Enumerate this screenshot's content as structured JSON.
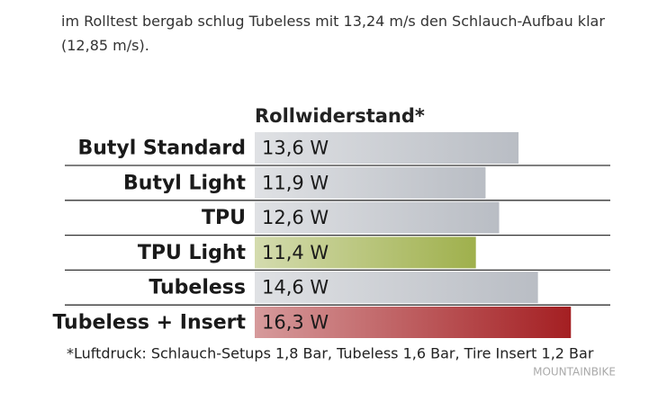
{
  "article": {
    "paragraph": "im Rolltest bergab schlug Tubeless mit 13,24 m/s den Schlauch-Aufbau klar (12,85 m/s)."
  },
  "chart_data": {
    "type": "bar",
    "orientation": "horizontal",
    "title": "Rollwiderstand*",
    "categories": [
      "Butyl Standard",
      "Butyl Light",
      "TPU",
      "TPU Light",
      "Tubeless",
      "Tubeless + Insert"
    ],
    "values": [
      13.6,
      11.9,
      12.6,
      11.4,
      14.6,
      16.3
    ],
    "value_labels": [
      "13,6 W",
      "11,9 W",
      "12,6 W",
      "11,4 W",
      "14,6 W",
      "16,3 W"
    ],
    "colors": [
      "#b9bdc4",
      "#b9bdc4",
      "#b9bdc4",
      "#9fb04c",
      "#b9bdc4",
      "#a41f22"
    ],
    "footnote": "*Luftdruck: Schlauch-Setups 1,8 Bar, Tubeless 1,6 Bar, Tire Insert 1,2 Bar",
    "source": "MOUNTAINBIKE"
  }
}
